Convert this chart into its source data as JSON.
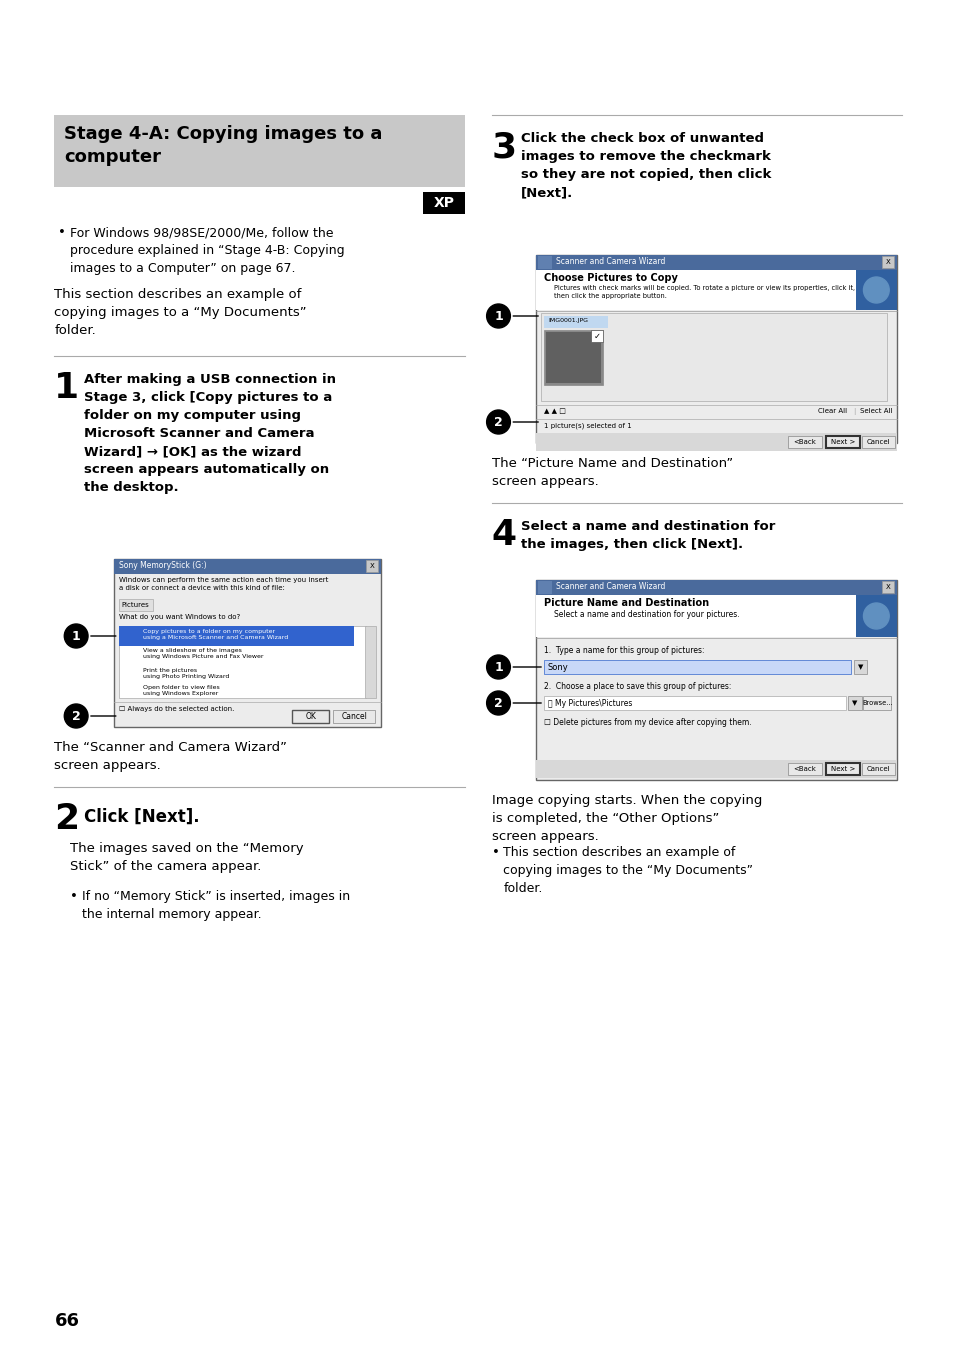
{
  "page_bg": "#ffffff",
  "page_number": "66",
  "title_box_text": "Stage 4-A: Copying images to a\ncomputer",
  "title_box_bg": "#c8c8c8",
  "xp_text": "XP",
  "bullet_text": "For Windows 98/98SE/2000/Me, follow the\nprocedure explained in “Stage 4-B: Copying\nimages to a Computer” on page 67.",
  "intro_text": "This section describes an example of\ncopying images to a “My Documents”\nfolder.",
  "step1_num": "1",
  "step1_text": "After making a USB connection in\nStage 3, click [Copy pictures to a\nfolder on my computer using\nMicrosoft Scanner and Camera\nWizard] → [OK] as the wizard\nscreen appears automatically on\nthe desktop.",
  "step1_caption": "The “Scanner and Camera Wizard”\nscreen appears.",
  "step2_num": "2",
  "step2_head": "Click [Next].",
  "step2_body": "The images saved on the “Memory\nStick” of the camera appear.",
  "step2_bullet": "If no “Memory Stick” is inserted, images in\nthe internal memory appear.",
  "step3_num": "3",
  "step3_text": "Click the check box of unwanted\nimages to remove the checkmark\nso they are not copied, then click\n[Next].",
  "step3_caption": "The “Picture Name and Destination”\nscreen appears.",
  "step4_num": "4",
  "step4_text": "Select a name and destination for\nthe images, then click [Next].",
  "step4_body": "Image copying starts. When the copying\nis completed, the “Other Options”\nscreen appears.",
  "step4_bullet": "This section describes an example of\ncopying images to the “My Documents”\nfolder.",
  "divider_color": "#aaaaaa"
}
